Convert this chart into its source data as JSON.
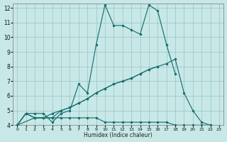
{
  "xlabel": "Humidex (Indice chaleur)",
  "bg_color": "#c8e8e8",
  "grid_color": "#a0c8c8",
  "line_color": "#1a7070",
  "xlim": [
    0,
    23
  ],
  "ylim": [
    4,
    12
  ],
  "xticks": [
    0,
    1,
    2,
    3,
    4,
    5,
    6,
    7,
    8,
    9,
    10,
    11,
    12,
    13,
    14,
    15,
    16,
    17,
    18,
    19,
    20,
    21,
    22,
    23
  ],
  "yticks": [
    4,
    5,
    6,
    7,
    8,
    9,
    10,
    11,
    12
  ],
  "series": [
    {
      "x": [
        0,
        1,
        2,
        3,
        4,
        5,
        6,
        7,
        8,
        9,
        10,
        11,
        12,
        13,
        14,
        15,
        16,
        17,
        18
      ],
      "y": [
        4.0,
        4.8,
        4.8,
        4.8,
        4.2,
        4.8,
        5.0,
        6.8,
        6.2,
        9.5,
        12.2,
        10.8,
        10.8,
        10.5,
        10.2,
        12.2,
        11.8,
        9.5,
        7.5
      ]
    },
    {
      "x": [
        0,
        1,
        2,
        3,
        4,
        5,
        6,
        7,
        8,
        9,
        10,
        11,
        12,
        13,
        14,
        15,
        16,
        17,
        18,
        19,
        20,
        21,
        22
      ],
      "y": [
        4.0,
        4.8,
        4.5,
        4.5,
        4.8,
        5.0,
        5.2,
        5.5,
        5.8,
        6.2,
        6.5,
        6.8,
        7.0,
        7.2,
        7.5,
        7.8,
        8.0,
        8.2,
        8.5,
        6.2,
        5.0,
        4.2,
        4.0
      ]
    },
    {
      "x": [
        0,
        1,
        2,
        3,
        4,
        5,
        6,
        7,
        8,
        9,
        10,
        11,
        12,
        13,
        14,
        15,
        16
      ],
      "y": [
        4.0,
        4.8,
        4.5,
        4.5,
        4.5,
        5.0,
        5.2,
        5.5,
        5.8,
        6.2,
        6.5,
        6.8,
        7.0,
        7.2,
        7.5,
        7.8,
        8.0
      ]
    },
    {
      "x": [
        0,
        2,
        4,
        5,
        6,
        7,
        8,
        9,
        10,
        11,
        12,
        13,
        14,
        15,
        16,
        17,
        18,
        19,
        20,
        21,
        22
      ],
      "y": [
        4.0,
        4.5,
        4.5,
        4.5,
        4.5,
        4.5,
        4.5,
        4.5,
        4.2,
        4.2,
        4.2,
        4.2,
        4.2,
        4.2,
        4.2,
        4.2,
        4.0,
        4.0,
        4.0,
        4.0,
        4.0
      ]
    }
  ]
}
